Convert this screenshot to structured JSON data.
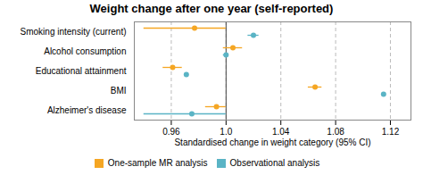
{
  "chart_data": {
    "type": "forest",
    "title": "Weight change after one year (self-reported)",
    "xlabel": "Standardised change in weight category (95% CI)",
    "categories": [
      "Smoking intensity (current)",
      "Alcohol consumption",
      "Educational attainment",
      "BMI",
      "Alzheimer's disease"
    ],
    "series": [
      {
        "name": "One-sample MR analysis",
        "color": "#f5a623",
        "values": [
          0.977,
          1.005,
          0.961,
          1.065,
          0.993
        ],
        "ci_low": [
          0.94,
          0.998,
          0.954,
          1.06,
          0.985
        ],
        "ci_high": [
          1.0,
          1.012,
          0.968,
          1.07,
          1.0
        ]
      },
      {
        "name": "Observational analysis",
        "color": "#5ab4c5",
        "values": [
          1.02,
          1.0,
          0.971,
          1.115,
          0.975
        ],
        "ci_low": [
          1.016,
          0.998,
          null,
          null,
          0.94
        ],
        "ci_high": [
          1.024,
          1.002,
          null,
          null,
          1.0
        ]
      }
    ],
    "xlim": [
      0.933,
      1.135
    ],
    "xticks": [
      0.96,
      {
        "value": 1,
        "label": "1.0"
      },
      1.04,
      1.08,
      1.12
    ],
    "ref_line": 1,
    "grid": true,
    "legend": "bottom"
  }
}
